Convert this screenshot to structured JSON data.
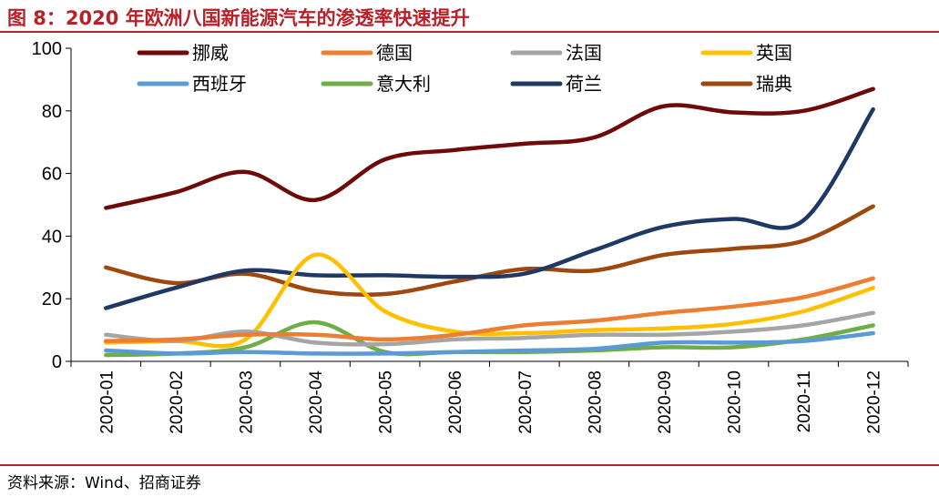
{
  "figure": {
    "title": "图 8：2020 年欧洲八国新能源汽车的渗透率快速提升",
    "source": "资料来源：Wind、招商证券"
  },
  "colors": {
    "accent": "#b8202a"
  },
  "chart_data": {
    "type": "line",
    "title": "",
    "xlabel": "",
    "ylabel": "",
    "ylim": [
      0,
      100
    ],
    "yticks": [
      0,
      20,
      40,
      60,
      80,
      100
    ],
    "grid": false,
    "legend_position": "top",
    "categories": [
      "2020-01",
      "2020-02",
      "2020-03",
      "2020-04",
      "2020-05",
      "2020-06",
      "2020-07",
      "2020-08",
      "2020-09",
      "2020-10",
      "2020-11",
      "2020-12"
    ],
    "series": [
      {
        "name": "挪威",
        "color": "#6e0a0a",
        "values": [
          49,
          54,
          60.5,
          51.5,
          64.5,
          67.5,
          69.5,
          71.5,
          81.5,
          79.5,
          80,
          87
        ]
      },
      {
        "name": "德国",
        "color": "#ed7d31",
        "values": [
          6.5,
          7,
          8.5,
          8.5,
          7,
          8.5,
          11.5,
          13,
          15.5,
          17.5,
          20.5,
          26.5
        ]
      },
      {
        "name": "法国",
        "color": "#a5a5a5",
        "values": [
          8.5,
          6.5,
          9.5,
          6,
          5.5,
          7,
          7.5,
          8.5,
          8.5,
          9.5,
          11.5,
          15.5
        ]
      },
      {
        "name": "英国",
        "color": "#ffc000",
        "values": [
          6,
          6.5,
          7,
          34,
          16,
          9.5,
          9,
          10,
          10.5,
          12,
          16,
          23.5
        ]
      },
      {
        "name": "西班牙",
        "color": "#5b9bd5",
        "values": [
          3.5,
          2.5,
          3,
          2.5,
          2.5,
          3,
          3.5,
          4,
          6,
          6,
          6.5,
          9
        ]
      },
      {
        "name": "意大利",
        "color": "#70ad47",
        "values": [
          2,
          2.5,
          4.5,
          12.5,
          3,
          3,
          3,
          3.5,
          4.5,
          4.5,
          7,
          11.5
        ]
      },
      {
        "name": "荷兰",
        "color": "#1f3864",
        "values": [
          17,
          23.5,
          29,
          27.5,
          27.5,
          27,
          28,
          35.5,
          43,
          45.5,
          45,
          80.5
        ]
      },
      {
        "name": "瑞典",
        "color": "#9e480e",
        "values": [
          30,
          25,
          28,
          22.5,
          21.5,
          25.5,
          29.5,
          29,
          34,
          36,
          38.5,
          49.5
        ]
      }
    ]
  }
}
